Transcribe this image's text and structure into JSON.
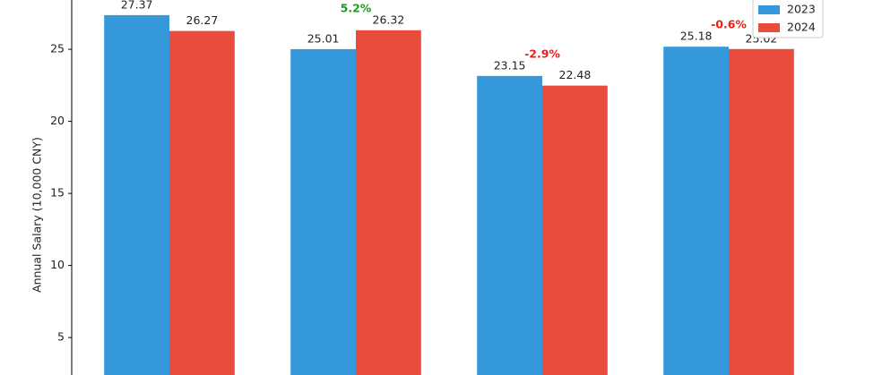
{
  "chart_data": {
    "type": "bar",
    "ylabel": "Annual Salary (10,000 CNY)",
    "categories": [
      null,
      null,
      null,
      null
    ],
    "series": [
      {
        "name": "2023",
        "color": "#3498db",
        "values": [
          27.37,
          25.01,
          23.15,
          25.18
        ]
      },
      {
        "name": "2024",
        "color": "#e74c3c",
        "values": [
          26.27,
          26.32,
          22.48,
          25.02
        ]
      }
    ],
    "change_labels": [
      null,
      "5.2%",
      "-2.9%",
      "-0.6%"
    ],
    "change_colors": [
      null,
      "#1f9a1f",
      "#e8201a",
      "#e8201a"
    ],
    "ylim": [
      2.4,
      28.42
    ],
    "yticks": [
      5,
      10,
      15,
      20,
      25
    ],
    "legend": "upper right"
  }
}
